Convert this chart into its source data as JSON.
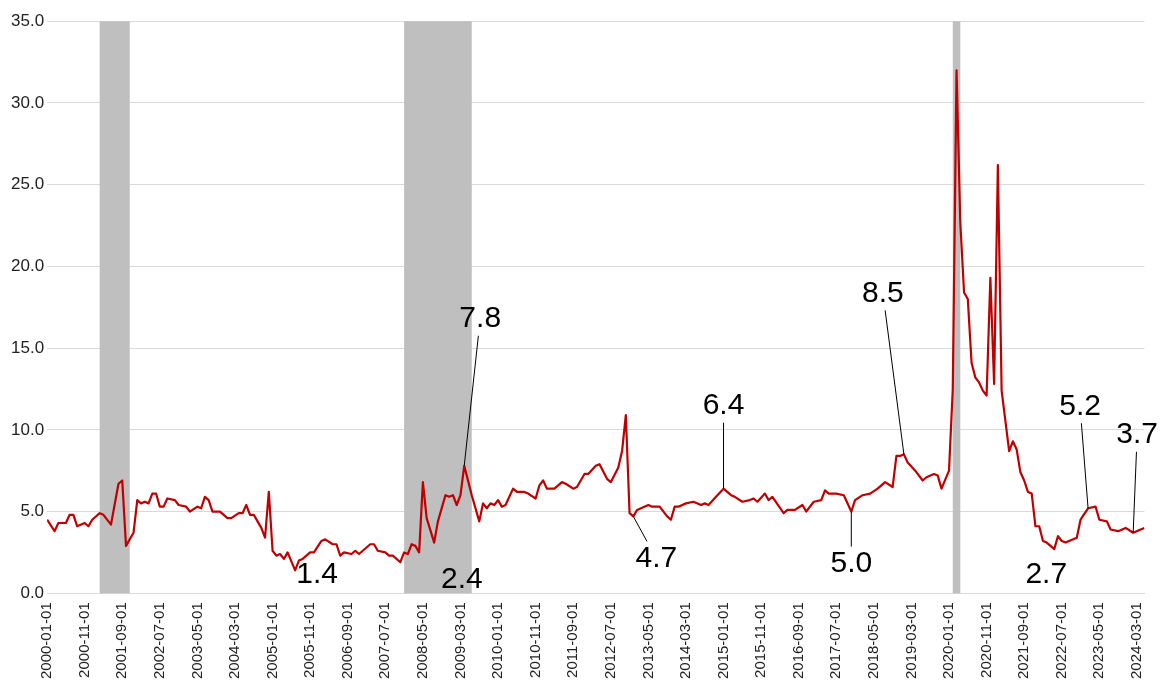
{
  "chart_data": {
    "type": "line",
    "x": [
      "2000-01",
      "2000-03",
      "2000-04",
      "2000-06",
      "2000-07",
      "2000-08",
      "2000-09",
      "2000-11",
      "2000-12",
      "2001-01",
      "2001-03",
      "2001-04",
      "2001-06",
      "2001-08",
      "2001-09",
      "2001-10",
      "2001-12",
      "2002-01",
      "2002-02",
      "2002-03",
      "2002-04",
      "2002-05",
      "2002-06",
      "2002-07",
      "2002-08",
      "2002-09",
      "2002-11",
      "2002-12",
      "2003-02",
      "2003-03",
      "2003-05",
      "2003-06",
      "2003-07",
      "2003-08",
      "2003-09",
      "2003-11",
      "2004-01",
      "2004-02",
      "2004-04",
      "2004-05",
      "2004-06",
      "2004-07",
      "2004-08",
      "2004-10",
      "2004-11",
      "2004-12",
      "2005-01",
      "2005-02",
      "2005-03",
      "2005-04",
      "2005-05",
      "2005-07",
      "2005-08",
      "2005-09",
      "2005-11",
      "2005-12",
      "2006-02",
      "2006-03",
      "2006-05",
      "2006-06",
      "2006-07",
      "2006-08",
      "2006-10",
      "2006-11",
      "2006-12",
      "2007-03",
      "2007-04",
      "2007-05",
      "2007-07",
      "2007-08",
      "2007-09",
      "2007-11",
      "2007-12",
      "2008-01",
      "2008-02",
      "2008-03",
      "2008-04",
      "2008-05",
      "2008-06",
      "2008-08",
      "2008-09",
      "2008-11",
      "2008-12",
      "2009-01",
      "2009-02",
      "2009-03",
      "2009-04",
      "2009-06",
      "2009-08",
      "2009-09",
      "2009-10",
      "2009-11",
      "2009-12",
      "2010-01",
      "2010-02",
      "2010-03",
      "2010-05",
      "2010-06",
      "2010-08",
      "2010-09",
      "2010-11",
      "2010-12",
      "2011-01",
      "2011-02",
      "2011-04",
      "2011-06",
      "2011-07",
      "2011-09",
      "2011-10",
      "2011-12",
      "2012-01",
      "2012-03",
      "2012-04",
      "2012-06",
      "2012-07",
      "2012-09",
      "2012-10",
      "2012-11",
      "2012-12",
      "2013-01",
      "2013-02",
      "2013-05",
      "2013-06",
      "2013-08",
      "2013-10",
      "2013-11",
      "2013-12",
      "2014-01",
      "2014-03",
      "2014-05",
      "2014-07",
      "2014-08",
      "2014-09",
      "2014-11",
      "2015-01",
      "2015-03",
      "2015-04",
      "2015-06",
      "2015-08",
      "2015-09",
      "2015-10",
      "2015-12",
      "2016-01",
      "2016-02",
      "2016-05",
      "2016-06",
      "2016-08",
      "2016-10",
      "2016-11",
      "2017-01",
      "2017-03",
      "2017-04",
      "2017-05",
      "2017-07",
      "2017-09",
      "2017-11",
      "2017-12",
      "2018-02",
      "2018-04",
      "2018-06",
      "2018-08",
      "2018-10",
      "2018-11",
      "2018-12",
      "2019-01",
      "2019-02",
      "2019-04",
      "2019-06",
      "2019-07",
      "2019-09",
      "2019-10",
      "2019-11",
      "2020-01",
      "2020-02",
      "2020-03",
      "2020-04",
      "2020-05",
      "2020-06",
      "2020-07",
      "2020-08",
      "2020-09",
      "2020-10",
      "2020-11",
      "2020-12",
      "2021-01",
      "2021-02",
      "2021-03",
      "2021-05",
      "2021-06",
      "2021-07",
      "2021-08",
      "2021-09",
      "2021-10",
      "2021-11",
      "2021-12",
      "2022-01",
      "2022-02",
      "2022-03",
      "2022-05",
      "2022-06",
      "2022-07",
      "2022-08",
      "2022-11",
      "2022-12",
      "2023-02",
      "2023-04",
      "2023-05",
      "2023-07",
      "2023-08",
      "2023-10",
      "2023-12",
      "2024-02",
      "2024-04",
      "2024-05"
    ],
    "series": [
      {
        "color": "#c00000",
        "values": [
          4.5,
          3.8,
          4.3,
          4.3,
          4.8,
          4.8,
          4.1,
          4.3,
          4.1,
          4.5,
          4.9,
          4.8,
          4.2,
          6.7,
          6.9,
          2.9,
          3.7,
          5.7,
          5.5,
          5.6,
          5.5,
          6.1,
          6.1,
          5.3,
          5.3,
          5.8,
          5.7,
          5.4,
          5.3,
          5.0,
          5.3,
          5.2,
          5.9,
          5.7,
          5.0,
          5.0,
          4.6,
          4.6,
          4.9,
          4.9,
          5.4,
          4.8,
          4.8,
          4.0,
          3.4,
          6.2,
          2.6,
          2.3,
          2.4,
          2.1,
          2.5,
          1.4,
          2.0,
          2.1,
          2.5,
          2.5,
          3.2,
          3.3,
          3.0,
          3.0,
          2.3,
          2.5,
          2.4,
          2.6,
          2.4,
          3.0,
          3.0,
          2.6,
          2.5,
          2.3,
          2.3,
          1.9,
          2.5,
          2.4,
          3.0,
          2.9,
          2.5,
          6.8,
          4.6,
          3.1,
          4.4,
          6.0,
          5.9,
          6.0,
          5.4,
          6.0,
          7.8,
          6.0,
          4.4,
          5.5,
          5.2,
          5.5,
          5.4,
          5.7,
          5.3,
          5.4,
          6.4,
          6.2,
          6.2,
          6.1,
          5.8,
          6.6,
          6.9,
          6.4,
          6.4,
          6.8,
          6.7,
          6.4,
          6.5,
          7.3,
          7.3,
          7.8,
          7.9,
          7.0,
          6.8,
          7.7,
          8.7,
          10.9,
          4.9,
          4.7,
          5.1,
          5.4,
          5.3,
          5.3,
          4.7,
          4.5,
          5.3,
          5.3,
          5.5,
          5.6,
          5.4,
          5.5,
          5.4,
          5.9,
          6.4,
          6.0,
          5.9,
          5.6,
          5.7,
          5.8,
          5.6,
          6.1,
          5.7,
          5.9,
          4.9,
          5.1,
          5.1,
          5.4,
          5.0,
          5.6,
          5.7,
          6.3,
          6.1,
          6.1,
          6.0,
          5.0,
          5.7,
          6.0,
          6.1,
          6.4,
          6.8,
          6.5,
          8.4,
          8.4,
          8.5,
          8.0,
          7.5,
          6.9,
          7.1,
          7.3,
          7.2,
          6.4,
          7.5,
          12.5,
          32.0,
          22.7,
          18.4,
          18.0,
          14.1,
          13.2,
          12.9,
          12.4,
          12.1,
          19.3,
          12.8,
          26.2,
          12.4,
          8.7,
          9.3,
          8.8,
          7.4,
          6.9,
          6.2,
          6.1,
          4.1,
          4.1,
          3.2,
          3.1,
          2.7,
          3.5,
          3.2,
          3.1,
          3.4,
          4.5,
          5.2,
          5.3,
          4.5,
          4.4,
          3.9,
          3.8,
          4.0,
          3.7,
          3.9,
          4.0
        ]
      }
    ],
    "xlim": [
      "2000-01-01",
      "2024-05-01"
    ],
    "xticks": [
      "2000-01-01",
      "2000-11-01",
      "2001-09-01",
      "2002-07-01",
      "2003-05-01",
      "2004-03-01",
      "2005-01-01",
      "2005-11-01",
      "2006-09-01",
      "2007-07-01",
      "2008-05-01",
      "2009-03-01",
      "2010-01-01",
      "2010-11-01",
      "2011-09-01",
      "2012-07-01",
      "2013-05-01",
      "2014-03-01",
      "2015-01-01",
      "2015-11-01",
      "2016-09-01",
      "2017-07-01",
      "2018-05-01",
      "2019-03-01",
      "2020-01-01",
      "2020-11-01",
      "2021-09-01",
      "2022-07-01",
      "2023-05-01",
      "2024-03-01"
    ],
    "ylim": [
      0,
      35
    ],
    "yticks": [
      {
        "value": 0,
        "label": "0.0"
      },
      {
        "value": 5,
        "label": "5.0"
      },
      {
        "value": 10,
        "label": "10.0"
      },
      {
        "value": 15,
        "label": "15.0"
      },
      {
        "value": 20,
        "label": "20.0"
      },
      {
        "value": 25,
        "label": "25.0"
      },
      {
        "value": 30,
        "label": "30.0"
      },
      {
        "value": 35,
        "label": "35.0"
      }
    ],
    "grid": "y",
    "marker": "none",
    "line_style": "solid",
    "bands": [
      {
        "axis": "x",
        "from": "2001-03",
        "to": "2001-11",
        "color": "#bfbfbf"
      },
      {
        "axis": "x",
        "from": "2007-12",
        "to": "2009-06",
        "color": "#bfbfbf"
      },
      {
        "axis": "x",
        "from": "2020-02",
        "to": "2020-04",
        "color": "#bfbfbf"
      }
    ],
    "annotations": [
      {
        "text": "1.4",
        "x": "2005-07",
        "y": 1.4
      },
      {
        "text": "2.4",
        "x": "2008-01",
        "y": 2.4
      },
      {
        "text": "7.8",
        "x": "2009-04",
        "y": 7.8
      },
      {
        "text": "4.7",
        "x": "2013-01",
        "y": 4.7
      },
      {
        "text": "6.4",
        "x": "2015-01",
        "y": 6.4
      },
      {
        "text": "5.0",
        "x": "2017-11",
        "y": 5.0
      },
      {
        "text": "8.5",
        "x": "2019-01",
        "y": 8.5
      },
      {
        "text": "2.7",
        "x": "2022-05",
        "y": 2.7
      },
      {
        "text": "5.2",
        "x": "2023-02",
        "y": 5.2
      },
      {
        "text": "3.7",
        "x": "2024-02",
        "y": 3.7
      }
    ]
  }
}
